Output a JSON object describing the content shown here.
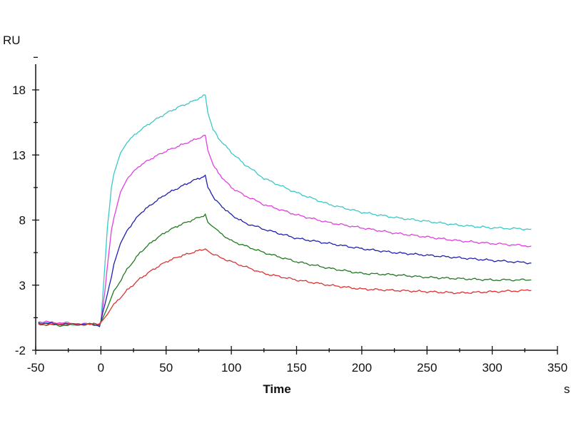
{
  "chart_data": {
    "type": "line",
    "title": "",
    "xlabel": "Time",
    "xunit": "s",
    "ylabel": "RU",
    "xlim": [
      -50,
      350
    ],
    "ylim": [
      -2,
      20
    ],
    "xticks": [
      -50,
      0,
      50,
      100,
      150,
      200,
      250,
      300,
      350
    ],
    "yticks": [
      -2,
      3,
      8,
      13,
      18
    ],
    "grid": false,
    "legend": "none",
    "series": [
      {
        "color": "#3cc8c8",
        "points": [
          [
            -48,
            0.1
          ],
          [
            -30,
            0.0
          ],
          [
            -10,
            0.0
          ],
          [
            -1,
            0.0
          ],
          [
            0,
            0.2
          ],
          [
            3,
            4.5
          ],
          [
            5,
            7.5
          ],
          [
            8,
            10.5
          ],
          [
            10,
            11.6
          ],
          [
            15,
            13.2
          ],
          [
            20,
            14.0
          ],
          [
            30,
            14.9
          ],
          [
            40,
            15.6
          ],
          [
            50,
            16.2
          ],
          [
            60,
            16.7
          ],
          [
            70,
            17.1
          ],
          [
            80,
            17.6
          ],
          [
            82,
            16.2
          ],
          [
            86,
            15.0
          ],
          [
            90,
            14.3
          ],
          [
            100,
            13.2
          ],
          [
            110,
            12.3
          ],
          [
            125,
            11.2
          ],
          [
            150,
            10.1
          ],
          [
            175,
            9.2
          ],
          [
            200,
            8.6
          ],
          [
            225,
            8.2
          ],
          [
            250,
            7.9
          ],
          [
            275,
            7.6
          ],
          [
            300,
            7.4
          ],
          [
            330,
            7.3
          ]
        ]
      },
      {
        "color": "#e040e0",
        "points": [
          [
            -48,
            0.2
          ],
          [
            -30,
            0.1
          ],
          [
            -10,
            0.0
          ],
          [
            -1,
            0.0
          ],
          [
            0,
            0.2
          ],
          [
            3,
            2.5
          ],
          [
            5,
            4.5
          ],
          [
            8,
            7.2
          ],
          [
            10,
            8.2
          ],
          [
            15,
            10.2
          ],
          [
            20,
            11.2
          ],
          [
            30,
            12.2
          ],
          [
            40,
            12.8
          ],
          [
            50,
            13.3
          ],
          [
            60,
            13.7
          ],
          [
            70,
            14.1
          ],
          [
            80,
            14.5
          ],
          [
            82,
            13.3
          ],
          [
            86,
            12.3
          ],
          [
            90,
            11.6
          ],
          [
            100,
            10.5
          ],
          [
            110,
            9.9
          ],
          [
            125,
            9.2
          ],
          [
            150,
            8.4
          ],
          [
            175,
            7.8
          ],
          [
            200,
            7.4
          ],
          [
            225,
            7.0
          ],
          [
            250,
            6.7
          ],
          [
            275,
            6.4
          ],
          [
            300,
            6.2
          ],
          [
            330,
            6.0
          ]
        ]
      },
      {
        "color": "#2020b0",
        "points": [
          [
            -48,
            0.1
          ],
          [
            -30,
            0.0
          ],
          [
            -10,
            0.0
          ],
          [
            -1,
            -0.1
          ],
          [
            0,
            0.2
          ],
          [
            3,
            1.5
          ],
          [
            5,
            2.3
          ],
          [
            8,
            3.6
          ],
          [
            10,
            4.6
          ],
          [
            15,
            6.2
          ],
          [
            20,
            7.2
          ],
          [
            30,
            8.5
          ],
          [
            40,
            9.3
          ],
          [
            50,
            10.0
          ],
          [
            60,
            10.5
          ],
          [
            70,
            11.0
          ],
          [
            80,
            11.4
          ],
          [
            82,
            10.5
          ],
          [
            86,
            9.8
          ],
          [
            90,
            9.3
          ],
          [
            100,
            8.4
          ],
          [
            110,
            7.8
          ],
          [
            125,
            7.3
          ],
          [
            150,
            6.6
          ],
          [
            175,
            6.2
          ],
          [
            200,
            5.8
          ],
          [
            225,
            5.5
          ],
          [
            250,
            5.3
          ],
          [
            275,
            5.1
          ],
          [
            300,
            4.9
          ],
          [
            330,
            4.7
          ]
        ]
      },
      {
        "color": "#207a20",
        "points": [
          [
            -48,
            0.0
          ],
          [
            -30,
            -0.1
          ],
          [
            -10,
            0.0
          ],
          [
            -1,
            0.0
          ],
          [
            0,
            0.1
          ],
          [
            5,
            1.2
          ],
          [
            10,
            2.5
          ],
          [
            20,
            4.2
          ],
          [
            30,
            5.5
          ],
          [
            40,
            6.4
          ],
          [
            50,
            7.1
          ],
          [
            60,
            7.6
          ],
          [
            70,
            8.0
          ],
          [
            80,
            8.4
          ],
          [
            82,
            7.9
          ],
          [
            90,
            7.1
          ],
          [
            100,
            6.4
          ],
          [
            125,
            5.5
          ],
          [
            150,
            4.8
          ],
          [
            175,
            4.3
          ],
          [
            200,
            3.9
          ],
          [
            225,
            3.8
          ],
          [
            250,
            3.6
          ],
          [
            275,
            3.5
          ],
          [
            300,
            3.4
          ],
          [
            330,
            3.4
          ]
        ]
      },
      {
        "color": "#e03030",
        "points": [
          [
            -48,
            0.0
          ],
          [
            -30,
            0.0
          ],
          [
            -10,
            0.0
          ],
          [
            -1,
            0.0
          ],
          [
            0,
            0.1
          ],
          [
            5,
            0.7
          ],
          [
            10,
            1.5
          ],
          [
            20,
            2.6
          ],
          [
            30,
            3.5
          ],
          [
            40,
            4.2
          ],
          [
            50,
            4.8
          ],
          [
            60,
            5.2
          ],
          [
            70,
            5.5
          ],
          [
            80,
            5.8
          ],
          [
            85,
            5.4
          ],
          [
            100,
            4.8
          ],
          [
            125,
            3.9
          ],
          [
            150,
            3.4
          ],
          [
            175,
            3.0
          ],
          [
            200,
            2.7
          ],
          [
            225,
            2.6
          ],
          [
            250,
            2.5
          ],
          [
            275,
            2.4
          ],
          [
            300,
            2.5
          ],
          [
            330,
            2.6
          ]
        ]
      }
    ]
  }
}
